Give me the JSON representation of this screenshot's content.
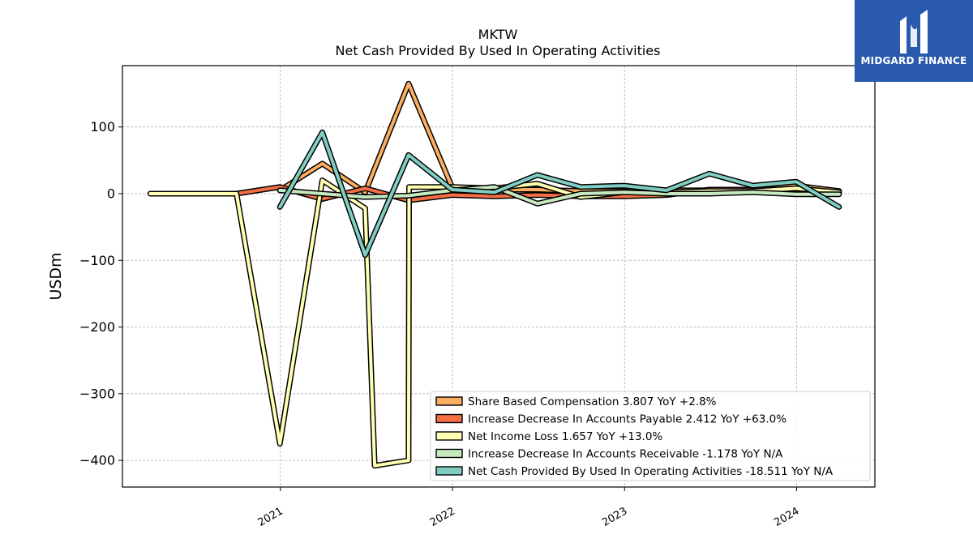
{
  "brand": {
    "name": "MIDGARD FINANCE",
    "bg_color": "#2a5aad",
    "icon": "midgard-logo-icon"
  },
  "chart_data": {
    "type": "line",
    "title": "MKTW",
    "subtitle": "Net Cash Provided By Used In Operating Activities",
    "ylabel": "USDm",
    "xlabel": "",
    "ylim": [
      -440,
      192
    ],
    "xlim": [
      "2020-02-01",
      "2024-06-15"
    ],
    "yticks": [
      100,
      0,
      -100,
      -200,
      -300,
      -400
    ],
    "ytick_labels": [
      "100",
      "0",
      "−100",
      "−200",
      "−300",
      "−400"
    ],
    "xticks": [
      "2021-01-01",
      "2022-01-01",
      "2023-01-01",
      "2024-01-01"
    ],
    "xtick_labels": [
      "2021",
      "2022",
      "2023",
      "2024"
    ],
    "grid": true,
    "legend_position": "lower-right",
    "series": [
      {
        "name": "Share Based Compensation",
        "legend_label": "Share Based Compensation  3.807 YoY +2.8%",
        "color": "#fdae61",
        "x": [
          "2020-12-31",
          "2021-03-31",
          "2021-06-30",
          "2021-09-30",
          "2021-12-31",
          "2022-03-31",
          "2022-06-30",
          "2022-09-30",
          "2022-12-31",
          "2023-03-31",
          "2023-06-30",
          "2023-09-30",
          "2023-12-31",
          "2024-03-31"
        ],
        "y": [
          5,
          45,
          2,
          165,
          10,
          6,
          6,
          4,
          4,
          5,
          5,
          4,
          12,
          4
        ]
      },
      {
        "name": "Increase Decrease In Accounts Payable",
        "legend_label": "Increase Decrease In Accounts Payable  2.412 YoY +63.0%",
        "color": "#f46d43",
        "x": [
          "2020-09-30",
          "2020-12-31",
          "2021-03-31",
          "2021-06-30",
          "2021-09-30",
          "2021-12-31",
          "2022-03-31",
          "2022-06-30",
          "2022-09-30",
          "2022-12-31",
          "2023-03-31",
          "2023-06-30",
          "2023-09-30",
          "2023-12-31",
          "2024-03-31"
        ],
        "y": [
          0,
          10,
          -8,
          8,
          -10,
          -2,
          -4,
          -2,
          -4,
          -4,
          -2,
          6,
          6,
          6,
          2
        ]
      },
      {
        "name": "Net Income Loss",
        "legend_label": "Net Income Loss  1.657 YoY +13.0%",
        "color": "#ffffb2",
        "x": [
          "2020-03-31",
          "2020-06-30",
          "2020-09-30",
          "2020-12-31",
          "2021-03-31",
          "2021-06-30",
          "2021-07-20",
          "2021-09-30",
          "2021-10-01",
          "2021-12-31",
          "2022-03-31",
          "2022-06-30",
          "2022-09-30",
          "2022-12-31",
          "2023-03-31",
          "2023-06-30",
          "2023-09-30",
          "2023-12-31",
          "2024-03-31"
        ],
        "y": [
          0,
          0,
          0,
          -375,
          20,
          -22,
          -408,
          -400,
          10,
          10,
          8,
          15,
          -5,
          2,
          2,
          4,
          4,
          8,
          2
        ]
      },
      {
        "name": "Increase Decrease In Accounts Receivable",
        "legend_label": "Increase Decrease In Accounts Receivable  -1.178 YoY N/A",
        "color": "#c7e9c0",
        "x": [
          "2020-12-31",
          "2021-03-31",
          "2021-06-30",
          "2021-09-30",
          "2021-12-31",
          "2022-03-31",
          "2022-06-30",
          "2022-09-30",
          "2022-12-31",
          "2023-03-31",
          "2023-06-30",
          "2023-09-30",
          "2023-12-31",
          "2024-03-31"
        ],
        "y": [
          5,
          0,
          -5,
          -3,
          5,
          10,
          -15,
          0,
          2,
          0,
          0,
          2,
          -1,
          -1
        ]
      },
      {
        "name": "Net Cash Provided By Used In Operating Activities",
        "legend_label": "Net Cash Provided By Used In Operating Activities  -18.511 YoY N/A",
        "color": "#80cdc1",
        "x": [
          "2020-12-31",
          "2021-03-31",
          "2021-06-30",
          "2021-09-30",
          "2021-12-31",
          "2022-03-31",
          "2022-06-30",
          "2022-09-30",
          "2022-12-31",
          "2023-03-31",
          "2023-06-30",
          "2023-09-30",
          "2023-12-31",
          "2024-03-31"
        ],
        "y": [
          -20,
          92,
          -92,
          58,
          6,
          2,
          28,
          10,
          12,
          5,
          30,
          12,
          18,
          -20
        ]
      }
    ]
  }
}
